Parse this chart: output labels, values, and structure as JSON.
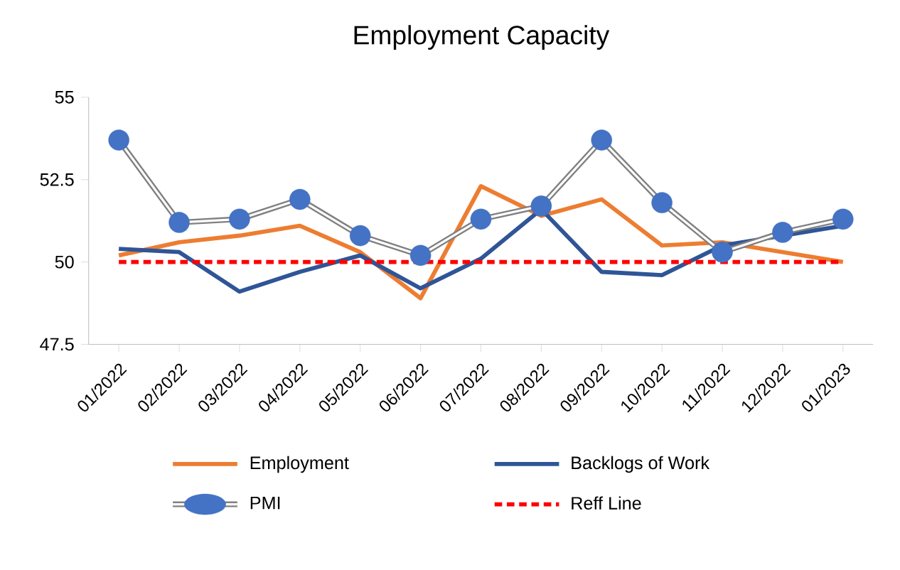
{
  "chart_data": {
    "type": "line",
    "title": "Employment Capacity",
    "categories": [
      "01/2022",
      "02/2022",
      "03/2022",
      "04/2022",
      "05/2022",
      "06/2022",
      "07/2022",
      "08/2022",
      "09/2022",
      "10/2022",
      "11/2022",
      "12/2022",
      "01/2023"
    ],
    "series": [
      {
        "name": "Employment",
        "color": "#ed7d31",
        "values": [
          50.2,
          50.6,
          50.8,
          51.1,
          50.3,
          48.9,
          52.3,
          51.4,
          51.9,
          50.5,
          50.6,
          50.3,
          50.0
        ]
      },
      {
        "name": "Backlogs of Work",
        "color": "#2f5597",
        "values": [
          50.4,
          50.3,
          49.1,
          49.7,
          50.2,
          49.2,
          50.1,
          51.6,
          49.7,
          49.6,
          50.5,
          50.8,
          51.1
        ]
      },
      {
        "name": "PMI",
        "color": "#4472c4",
        "marker": "circle",
        "values": [
          53.7,
          51.2,
          51.3,
          51.9,
          50.8,
          50.2,
          51.3,
          51.7,
          53.7,
          51.8,
          50.3,
          50.9,
          51.3
        ]
      },
      {
        "name": "Reff Line",
        "color": "#ff0000",
        "line_style": "dashed",
        "values": [
          50,
          50,
          50,
          50,
          50,
          50,
          50,
          50,
          50,
          50,
          50,
          50,
          50
        ]
      }
    ],
    "ylim": [
      47.5,
      55
    ],
    "yticks": [
      47.5,
      50,
      52.5,
      55
    ],
    "grid": false,
    "legend": "bottom"
  }
}
